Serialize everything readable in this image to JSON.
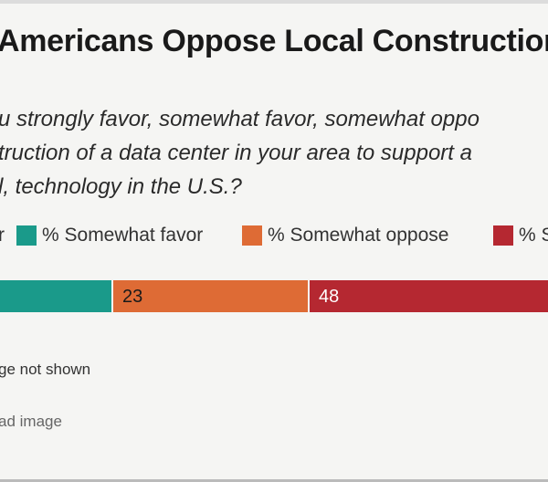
{
  "header": {
    "title": "Americans Oppose Local Construction"
  },
  "question": {
    "lines": [
      "u strongly favor, somewhat favor, somewhat oppo",
      "truction of a data center in your area to support a",
      "l, technology in the U.S.?"
    ]
  },
  "legend": {
    "first_fragment": "r",
    "items": [
      {
        "label": "% Somewhat favor",
        "color": "#1a9a8a"
      },
      {
        "label": "% Somewhat oppose",
        "color": "#de6b35"
      },
      {
        "label": "% S",
        "color": "#b52831"
      }
    ]
  },
  "chart_data": {
    "type": "bar",
    "orientation": "horizontal-stacked",
    "categories": [
      ""
    ],
    "series": [
      {
        "name": "% Somewhat favor",
        "values": [
          null
        ],
        "color": "#1a9a8a"
      },
      {
        "name": "% Somewhat oppose",
        "values": [
          23
        ],
        "color": "#de6b35"
      },
      {
        "name": "% S",
        "values": [
          48
        ],
        "color": "#b52831"
      }
    ],
    "data_labels": [
      "",
      "23",
      "48"
    ]
  },
  "footer": {
    "note": "ge not shown",
    "download": "ad image"
  }
}
